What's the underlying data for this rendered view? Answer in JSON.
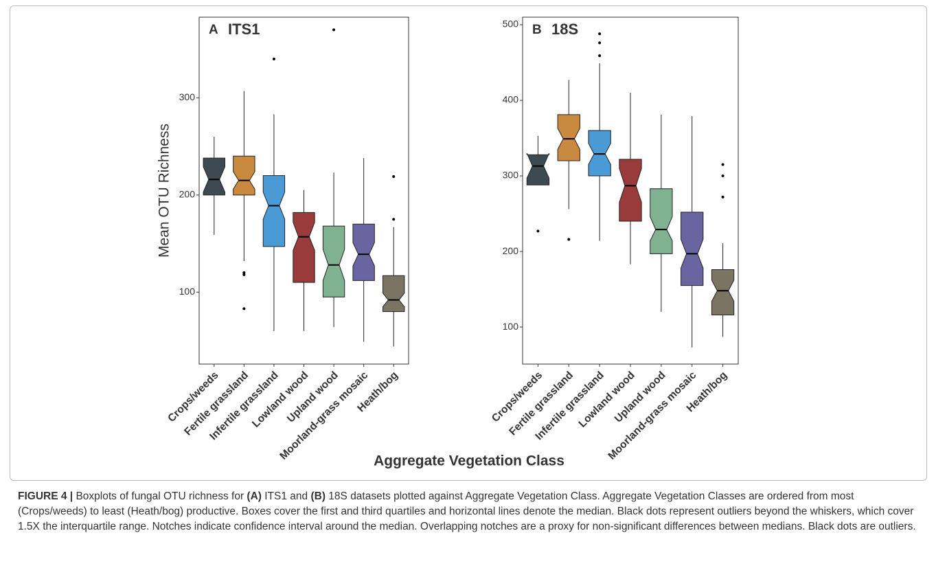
{
  "chart_data": [
    {
      "type": "boxplot",
      "panel": "A",
      "title": "ITS1",
      "ylabel": "Mean OTU Richness",
      "categories": [
        "Crops/weeds",
        "Fertile grassland",
        "Infertile grassland",
        "Lowland wood",
        "Upland wood",
        "Moorland-grass mosaic",
        "Heath/bog"
      ],
      "colors": [
        "#3e4a52",
        "#c98a40",
        "#4a9ad6",
        "#9a3b3b",
        "#80b190",
        "#6a64a0",
        "#7b7463"
      ],
      "boxes": [
        {
          "whislo": 159,
          "q1": 200,
          "med": 216,
          "q3": 238,
          "whishi": 260,
          "notch": [
            203,
            229
          ],
          "outliers": []
        },
        {
          "whislo": 132,
          "q1": 200,
          "med": 215,
          "q3": 240,
          "whishi": 307,
          "notch": [
            206,
            224
          ],
          "outliers": [
            120,
            118,
            83
          ]
        },
        {
          "whislo": 60,
          "q1": 147,
          "med": 189,
          "q3": 220,
          "whishi": 283,
          "notch": [
            175,
            203
          ],
          "outliers": [
            340
          ]
        },
        {
          "whislo": 60,
          "q1": 110,
          "med": 157,
          "q3": 182,
          "whishi": 205,
          "notch": [
            143,
            172
          ],
          "outliers": []
        },
        {
          "whislo": 64,
          "q1": 95,
          "med": 128,
          "q3": 168,
          "whishi": 223,
          "notch": [
            112,
            144
          ],
          "outliers": [
            370
          ]
        },
        {
          "whislo": 49,
          "q1": 112,
          "med": 139,
          "q3": 170,
          "whishi": 238,
          "notch": [
            127,
            151
          ],
          "outliers": []
        },
        {
          "whislo": 44,
          "q1": 80,
          "med": 92,
          "q3": 117,
          "whishi": 167,
          "notch": [
            85,
            99
          ],
          "outliers": [
            219,
            175
          ]
        }
      ],
      "ylim": [
        26,
        383
      ],
      "yticks": [
        100,
        200,
        300
      ]
    },
    {
      "type": "boxplot",
      "panel": "B",
      "title": "18S",
      "categories": [
        "Crops/weeds",
        "Fertile grassland",
        "Infertile grassland",
        "Lowland wood",
        "Upland wood",
        "Moorland-grass mosaic",
        "Heath/bog"
      ],
      "colors": [
        "#3e4a52",
        "#c98a40",
        "#4a9ad6",
        "#9a3b3b",
        "#80b190",
        "#6a64a0",
        "#7b7463"
      ],
      "boxes": [
        {
          "whislo": 288,
          "q1": 288,
          "med": 313,
          "q3": 328,
          "whishi": 353,
          "notch": [
            297,
            330
          ],
          "outliers": [
            227
          ]
        },
        {
          "whislo": 256,
          "q1": 320,
          "med": 349,
          "q3": 381,
          "whishi": 427,
          "notch": [
            335,
            363
          ],
          "outliers": [
            216
          ]
        },
        {
          "whislo": 214,
          "q1": 300,
          "med": 329,
          "q3": 360,
          "whishi": 449,
          "notch": [
            315,
            343
          ],
          "outliers": [
            488,
            476,
            459
          ]
        },
        {
          "whislo": 183,
          "q1": 240,
          "med": 287,
          "q3": 322,
          "whishi": 410,
          "notch": [
            265,
            310
          ],
          "outliers": []
        },
        {
          "whislo": 120,
          "q1": 197,
          "med": 229,
          "q3": 283,
          "whishi": 381,
          "notch": [
            214,
            246
          ],
          "outliers": []
        },
        {
          "whislo": 73,
          "q1": 155,
          "med": 197,
          "q3": 252,
          "whishi": 379,
          "notch": [
            178,
            216
          ],
          "outliers": []
        },
        {
          "whislo": 87,
          "q1": 116,
          "med": 148,
          "q3": 176,
          "whishi": 211,
          "notch": [
            134,
            162
          ],
          "outliers": [
            315,
            300,
            272
          ]
        }
      ],
      "ylim": [
        51,
        510
      ],
      "yticks": [
        100,
        200,
        300,
        400,
        500
      ]
    }
  ],
  "xlabel": "Aggregate Vegetation Class",
  "caption": [
    {
      "text": "FIGURE 4 |",
      "bold": true
    },
    {
      "text": " Boxplots of fungal OTU richness for ",
      "bold": false
    },
    {
      "text": "(A)",
      "bold": true
    },
    {
      "text": " ITS1 and ",
      "bold": false
    },
    {
      "text": "(B)",
      "bold": true
    },
    {
      "text": " 18S datasets plotted against Aggregate Vegetation Class. Aggregate Vegetation Classes are ordered from most (Crops/weeds) to least (Heath/bog) productive. Boxes cover the first and third quartiles and horizontal lines denote the median. Black dots represent outliers beyond the whiskers, which cover 1.5X the interquartile range. Notches indicate confidence interval around the median. Overlapping notches are a proxy for non-significant differences between medians. Black dots are outliers.",
      "bold": false
    }
  ]
}
